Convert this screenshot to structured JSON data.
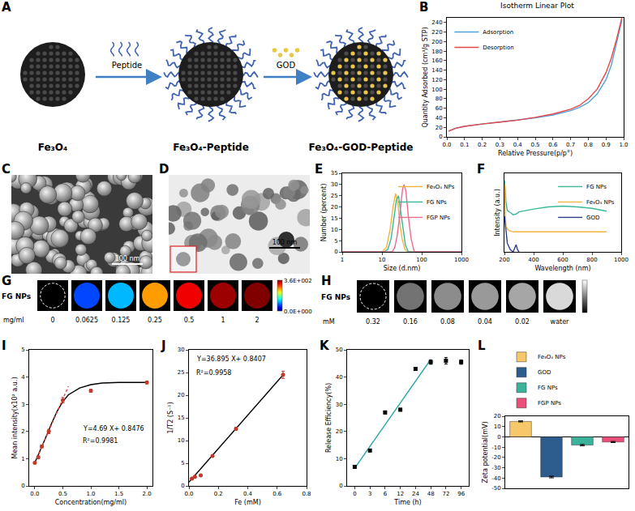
{
  "schematic": {
    "panel": "A",
    "particles": [
      "Fe₃O₄",
      "Fe₃O₄-Peptide",
      "Fe₃O₄-GOD-Peptide"
    ],
    "arrows": [
      "Peptide",
      "GOD"
    ]
  },
  "micrographs": [
    {
      "panel": "C",
      "scale_bar": "100 nm"
    },
    {
      "panel": "D",
      "scale_bar": "100 nm"
    }
  ],
  "image_strips": [
    {
      "panel": "G",
      "row_label": "FG NPs",
      "unit": "mg/ml",
      "concentrations": [
        0,
        0.0625,
        0.125,
        0.25,
        0.5,
        1,
        2
      ],
      "cell_values": [
        0,
        70,
        110,
        260,
        320,
        350,
        360
      ],
      "colorbar": {
        "range": [
          0,
          360
        ],
        "ticks": [
          {
            "value": 360,
            "label": "3.6E+002"
          },
          {
            "value": 0,
            "label": "0.0E+000"
          }
        ]
      }
    },
    {
      "panel": "H",
      "row_label": "FG NPs",
      "unit": "mM",
      "concentrations": [
        0.32,
        0.16,
        0.08,
        0.04,
        0.02,
        "water"
      ],
      "gray_levels": [
        0,
        0.45,
        0.55,
        0.6,
        0.65,
        0.85
      ],
      "colorbar": {
        "range": [
          0,
          1
        ]
      }
    }
  ],
  "chart_data": [
    {
      "panel": "B",
      "type": "line",
      "title": "Isotherm Linear Plot",
      "x_label": "Relative Pressure(p/p°)",
      "y_label": "Quantity Adsorbed (cm³/g STP)",
      "xlim": [
        0,
        1.0
      ],
      "xticks": [
        {
          "value": 0,
          "label": "0.0"
        },
        0.1,
        0.2,
        0.3,
        0.4,
        0.5,
        0.6,
        0.7,
        0.8,
        0.9,
        {
          "value": 1,
          "label": "1.0"
        }
      ],
      "ylim": [
        0,
        250
      ],
      "yticks": [
        0,
        20,
        40,
        60,
        80,
        100,
        120,
        140,
        160,
        180,
        200,
        220,
        240
      ],
      "legend": "upper left",
      "series": [
        {
          "name": "Adsorption",
          "color": "#4fa3d9",
          "x": [
            0.01,
            0.05,
            0.1,
            0.15,
            0.2,
            0.3,
            0.4,
            0.5,
            0.6,
            0.7,
            0.75,
            0.8,
            0.85,
            0.9,
            0.93,
            0.96,
            0.99
          ],
          "values": [
            12,
            18,
            22,
            25,
            27,
            31,
            35,
            40,
            46,
            55,
            62,
            72,
            90,
            120,
            150,
            195,
            245
          ]
        },
        {
          "name": "Desorption",
          "color": "#e8474c",
          "x": [
            0.01,
            0.05,
            0.1,
            0.15,
            0.2,
            0.3,
            0.4,
            0.5,
            0.6,
            0.7,
            0.75,
            0.8,
            0.85,
            0.9,
            0.93,
            0.96,
            0.99
          ],
          "values": [
            12,
            18,
            22,
            25,
            27,
            31,
            35,
            41,
            48,
            58,
            66,
            80,
            100,
            135,
            165,
            205,
            250
          ]
        }
      ]
    },
    {
      "panel": "E",
      "type": "line",
      "log": "x",
      "x_label": "Size (d.nm)",
      "y_label": "Number (percent)",
      "xlim": [
        1,
        1000
      ],
      "xticks": [
        1,
        10,
        100,
        1000
      ],
      "ylim": [
        0,
        35
      ],
      "yticks": [
        0,
        5,
        10,
        15,
        20,
        25,
        30,
        35
      ],
      "legend": "upper right",
      "series": [
        {
          "name": "Fe₃O₄ NPs",
          "color": "#f2b544",
          "x": [
            1,
            10,
            13,
            16,
            19,
            22,
            25,
            28,
            32,
            38,
            45,
            1000
          ],
          "values": [
            0,
            0,
            2,
            10,
            20,
            26,
            22,
            13,
            6,
            1,
            0,
            0
          ]
        },
        {
          "name": "FG NPs",
          "color": "#3cb89a",
          "x": [
            1,
            11,
            14,
            17,
            20,
            23,
            26,
            29,
            33,
            39,
            46,
            1000
          ],
          "values": [
            0,
            0,
            1,
            6,
            15,
            23,
            25,
            19,
            11,
            3,
            0,
            0
          ]
        },
        {
          "name": "FGP NPs",
          "color": "#f06b8a",
          "x": [
            1,
            18,
            21,
            24,
            27,
            30,
            33,
            36,
            40,
            46,
            54,
            65,
            1000
          ],
          "values": [
            0,
            0,
            2,
            7,
            14,
            22,
            28,
            30,
            27,
            16,
            6,
            0,
            0
          ]
        }
      ]
    },
    {
      "panel": "F",
      "type": "line",
      "tick_labels": "x",
      "x_label": "Wavelength (nm)",
      "y_label": "Intensity (a.u.)",
      "xlim": [
        200,
        1000
      ],
      "xticks": [
        200,
        400,
        600,
        800,
        1000
      ],
      "ylim": [
        0,
        1.1
      ],
      "legend": "upper right",
      "series": [
        {
          "name": "FG NPs",
          "color": "#3cb89a",
          "x": [
            200,
            205,
            210,
            220,
            240,
            260,
            280,
            300,
            350,
            400,
            500,
            600,
            700,
            800,
            900
          ],
          "values": [
            1.0,
            0.9,
            0.7,
            0.58,
            0.55,
            0.52,
            0.53,
            0.56,
            0.58,
            0.6,
            0.63,
            0.64,
            0.63,
            0.61,
            0.57
          ]
        },
        {
          "name": "Fe₃O₄ NPs",
          "color": "#f2b544",
          "x": [
            200,
            205,
            210,
            230,
            260,
            300,
            400,
            500,
            600,
            700,
            800,
            900
          ],
          "values": [
            0.95,
            0.6,
            0.35,
            0.3,
            0.28,
            0.28,
            0.28,
            0.28,
            0.28,
            0.28,
            0.28,
            0.28
          ]
        },
        {
          "name": "GOD",
          "color": "#2c3e8c",
          "x": [
            200,
            210,
            220,
            240,
            260,
            270,
            280,
            290,
            300
          ],
          "values": [
            0.5,
            0.3,
            0.12,
            0.03,
            0,
            0.05,
            0.1,
            0.03,
            0
          ]
        }
      ]
    },
    {
      "panel": "I",
      "type": "scatter",
      "x_label": "Concentration(mg/ml)",
      "y_label": "Mean intensity(x10² a.u.)",
      "xlim": [
        -0.1,
        2.1
      ],
      "xticks": [
        {
          "value": 0,
          "label": "0.0"
        },
        0.5,
        {
          "value": 1,
          "label": "1.0"
        },
        1.5,
        {
          "value": 2,
          "label": "2.0"
        }
      ],
      "ylim": [
        0,
        5
      ],
      "yticks": [
        0,
        1,
        2,
        3,
        4,
        5
      ],
      "annotations": [
        "Y=4.69 X+ 0.8476",
        "R²=0.9981"
      ],
      "series": [
        {
          "type": "line",
          "color": "#000000",
          "line_style": "solid",
          "x": [
            0,
            0.1,
            0.2,
            0.3,
            0.4,
            0.5,
            0.6,
            0.8,
            1.0,
            1.2,
            1.5,
            2.0
          ],
          "values": [
            0.85,
            1.3,
            1.8,
            2.3,
            2.75,
            3.1,
            3.35,
            3.6,
            3.72,
            3.78,
            3.8,
            3.8
          ]
        },
        {
          "type": "line",
          "color": "#e0453a",
          "line_style": "dotted",
          "x": [
            0,
            0.6
          ],
          "values": [
            0.8476,
            3.6616
          ]
        },
        {
          "type": "scatter",
          "color": "#c0392b",
          "marker": "circle",
          "x": [
            0,
            0.0625,
            0.125,
            0.25,
            0.5,
            1,
            2
          ],
          "values": [
            0.85,
            1.05,
            1.45,
            2.0,
            3.15,
            3.5,
            3.8
          ],
          "errors": [
            0.03,
            0.05,
            0.05,
            0.08,
            0.1,
            0.05,
            0.05
          ]
        }
      ]
    },
    {
      "panel": "J",
      "type": "scatter",
      "x_label": "Fe (mM)",
      "y_label": "1/T2 (S⁻¹)",
      "xlim": [
        0,
        0.8
      ],
      "xticks": [
        {
          "value": 0,
          "label": "0.0"
        },
        0.2,
        0.4,
        0.6,
        0.8
      ],
      "ylim": [
        0,
        30
      ],
      "yticks": [
        0,
        5,
        10,
        15,
        20,
        25,
        30
      ],
      "annotations": [
        "Y=36.895 X+ 0.8407",
        "R²=0.9958"
      ],
      "series": [
        {
          "type": "line",
          "color": "#000000",
          "line_style": "solid",
          "x": [
            0,
            0.64
          ],
          "values": [
            0.8407,
            24.4535
          ]
        },
        {
          "type": "scatter",
          "color": "#c0392b",
          "marker": "circle",
          "x": [
            0.02,
            0.04,
            0.08,
            0.16,
            0.32,
            0.64
          ],
          "values": [
            1.6,
            2.0,
            2.3,
            6.6,
            12.6,
            24.5
          ],
          "errors": [
            0.1,
            0.1,
            0.1,
            0.2,
            0.3,
            0.8
          ]
        }
      ]
    },
    {
      "panel": "K",
      "type": "scatter",
      "x_label": "Time (h)",
      "y_label": "Release Efficiency(%)",
      "categories": [
        "0",
        "3",
        "6",
        "12",
        "24",
        "48",
        "72",
        "96"
      ],
      "ylim": [
        0,
        50
      ],
      "yticks": [
        0,
        10,
        20,
        30,
        40,
        50
      ],
      "series": [
        {
          "type": "line",
          "color": "#2aa7a0",
          "line_style": "solid",
          "values": [
            6.5,
            14.5,
            22.5,
            30.5,
            38.5,
            46.5,
            null,
            null
          ]
        },
        {
          "type": "scatter",
          "color": "#000000",
          "marker": "square",
          "values": [
            7,
            13,
            27,
            28,
            43,
            45.5,
            46,
            45.5
          ],
          "errors": [
            0.3,
            0.3,
            0.5,
            0.5,
            0.6,
            0.8,
            1.2,
            0.8
          ]
        }
      ]
    },
    {
      "panel": "L",
      "type": "bar",
      "tick_labels": "y",
      "y_label": "Zeta potential(mV)",
      "categories": [
        "Fe₃O₄ NPs",
        "GOD",
        "FG NPs",
        "FGP NPs"
      ],
      "values": [
        15,
        -39,
        -8,
        -5
      ],
      "errors": [
        0.5,
        0.8,
        0.6,
        0.5
      ],
      "colors": [
        "#f7c86a",
        "#2d5d8c",
        "#3bb29a",
        "#e8507a"
      ],
      "ylim": [
        -50,
        20
      ],
      "yticks": [
        -50,
        -40,
        -30,
        -20,
        -10,
        0,
        10,
        20
      ],
      "legend": "top"
    }
  ]
}
